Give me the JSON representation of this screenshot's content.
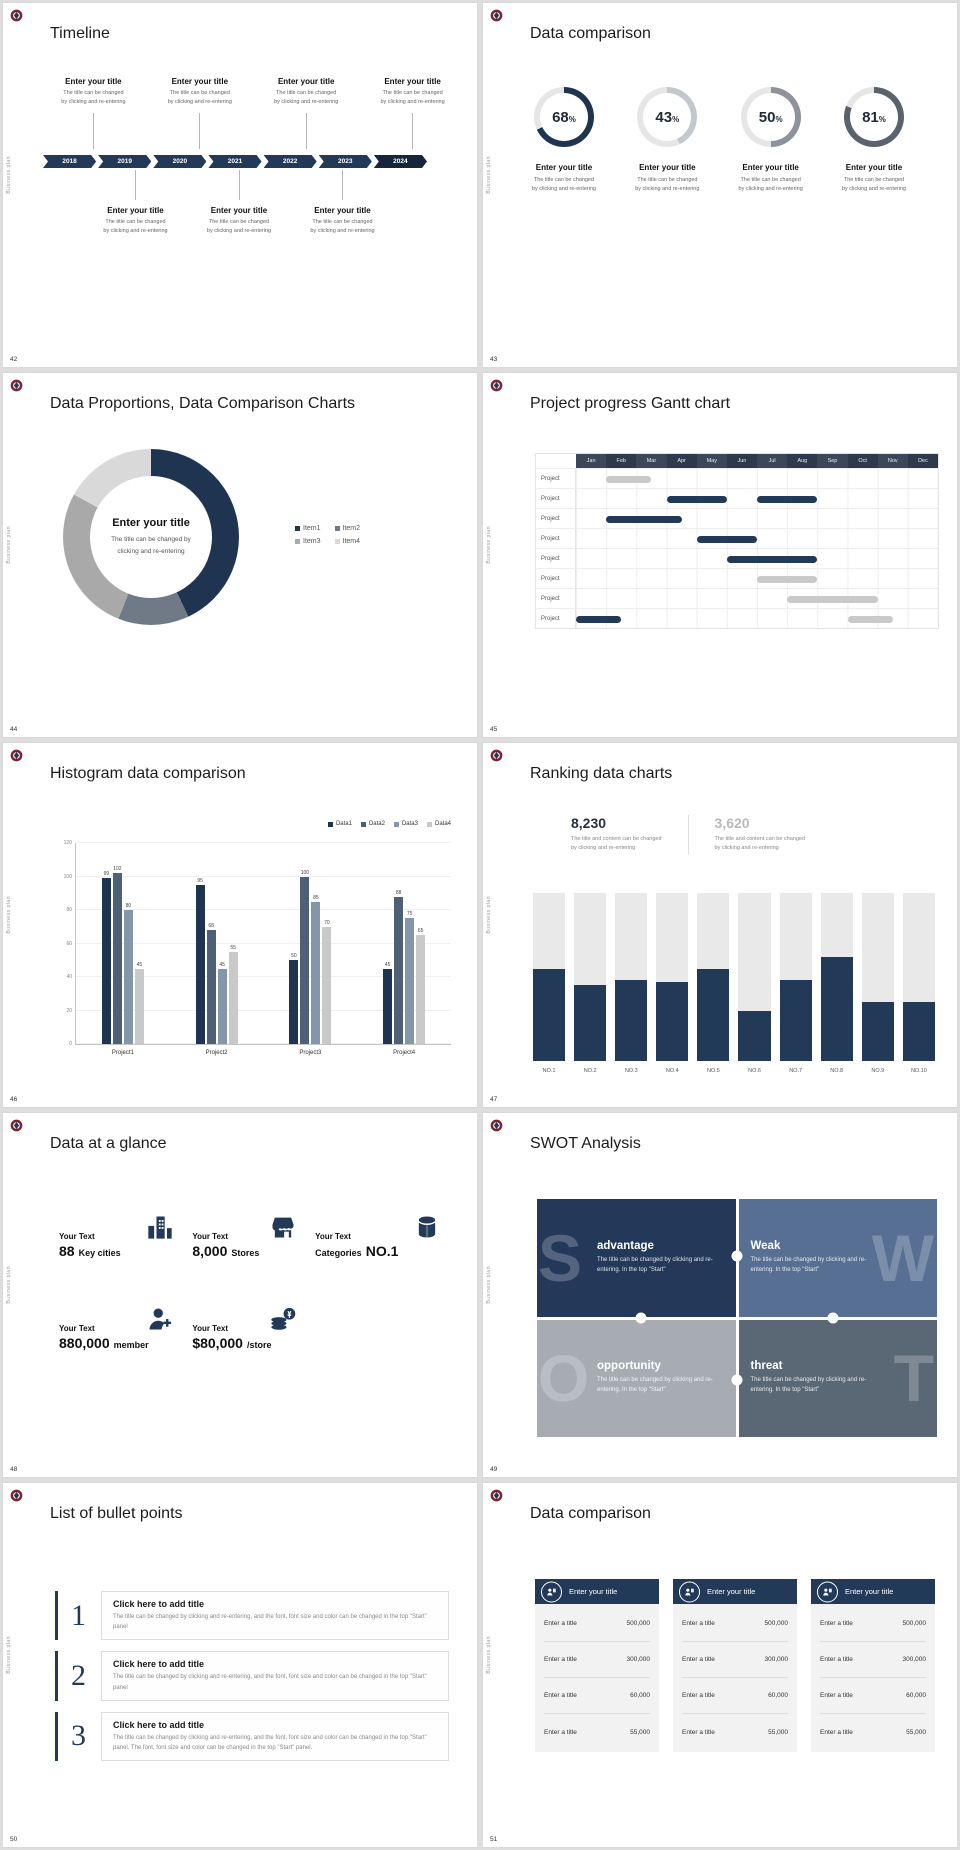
{
  "global": {
    "side_text": "Business plan",
    "colors": {
      "navy": "#223a57",
      "track": "#e6e6e6",
      "light_bar": "#c9c9c9"
    }
  },
  "slides": {
    "timeline": {
      "page": "42",
      "title": "Timeline",
      "years": [
        "2018",
        "2019",
        "2020",
        "2021",
        "2022",
        "2023",
        "2024"
      ],
      "top_count": 4,
      "bottom_count": 3,
      "item_title": "Enter your title",
      "item_line1": "The title can be changed",
      "item_line2": "by clicking and re-entering"
    },
    "comparison": {
      "page": "43",
      "title": "Data comparison",
      "percent_sign": "%",
      "item_title": "Enter your title",
      "item_line1": "The title can be changed",
      "item_line2": "by clicking and re-entering",
      "items": [
        {
          "pct": 68,
          "color": "#1f3450"
        },
        {
          "pct": 43,
          "color": "#c3c8ce"
        },
        {
          "pct": 50,
          "color": "#8d939c"
        },
        {
          "pct": 81,
          "color": "#5a626e"
        }
      ]
    },
    "proportions": {
      "page": "44",
      "title": "Data Proportions, Data Comparison Charts",
      "center_title": "Enter your title",
      "center_line1": "The title can be changed by",
      "center_line2": "clicking and re-entering",
      "segments": [
        {
          "name": "Item1",
          "value": 43,
          "color": "#1f3450"
        },
        {
          "name": "Item2",
          "value": 13,
          "color": "#707a86"
        },
        {
          "name": "Item3",
          "value": 27,
          "color": "#a9a9a9"
        },
        {
          "name": "Item4",
          "value": 17,
          "color": "#d9d9d9"
        }
      ]
    },
    "gantt": {
      "page": "45",
      "title": "Project progress Gantt chart",
      "row_label": "Project",
      "months": [
        "Jan",
        "Feb",
        "Mar",
        "Apr",
        "May",
        "Jun",
        "Jul",
        "Aug",
        "Sep",
        "Oct",
        "Nov",
        "Dec"
      ],
      "rows": [
        {
          "bars": [
            {
              "start": 1,
              "span": 1.5,
              "color": "light"
            }
          ]
        },
        {
          "bars": [
            {
              "start": 3,
              "span": 2,
              "color": "navy"
            },
            {
              "start": 6,
              "span": 2,
              "color": "navy"
            }
          ]
        },
        {
          "bars": [
            {
              "start": 1,
              "span": 2.5,
              "color": "navy"
            }
          ]
        },
        {
          "bars": [
            {
              "start": 4,
              "span": 2,
              "color": "navy"
            }
          ]
        },
        {
          "bars": [
            {
              "start": 5,
              "span": 3,
              "color": "navy"
            }
          ]
        },
        {
          "bars": [
            {
              "start": 6,
              "span": 2,
              "color": "light"
            }
          ]
        },
        {
          "bars": [
            {
              "start": 7,
              "span": 3,
              "color": "light"
            }
          ]
        },
        {
          "bars": [
            {
              "start": 0,
              "span": 1.5,
              "color": "navy"
            },
            {
              "start": 9,
              "span": 1.5,
              "color": "light"
            }
          ]
        }
      ]
    },
    "histogram": {
      "page": "46",
      "title": "Histogram data comparison",
      "ymax": 120,
      "yticks": [
        0,
        20,
        40,
        60,
        80,
        100,
        120
      ],
      "series": [
        {
          "name": "Data1",
          "color": "#1f3450"
        },
        {
          "name": "Data2",
          "color": "#4e6076"
        },
        {
          "name": "Data3",
          "color": "#8496a9"
        },
        {
          "name": "Data4",
          "color": "#c9c9c9"
        }
      ],
      "groups": [
        {
          "label": "Project1",
          "values": [
            99,
            102,
            80,
            45
          ]
        },
        {
          "label": "Project2",
          "values": [
            95,
            68,
            45,
            55
          ]
        },
        {
          "label": "Project3",
          "values": [
            50,
            100,
            85,
            70
          ]
        },
        {
          "label": "Project4",
          "values": [
            45,
            88,
            75,
            65
          ]
        }
      ]
    },
    "ranking": {
      "page": "47",
      "title": "Ranking data charts",
      "max": 100,
      "stat1": {
        "value": "8,230",
        "line1": "The title and content can be changed",
        "line2": "by clicking and re-entering"
      },
      "stat2": {
        "value": "3,620",
        "line1": "The title and content can be changed",
        "line2": "by clicking and re-entering"
      },
      "categories": [
        "NO.1",
        "NO.2",
        "NO.3",
        "NO.4",
        "NO.5",
        "NO.6",
        "NO.7",
        "NO.8",
        "NO.9",
        "NO.10"
      ],
      "values": [
        55,
        45,
        48,
        47,
        55,
        30,
        48,
        62,
        35,
        35
      ]
    },
    "glance": {
      "page": "48",
      "title": "Data at a glance",
      "items": [
        {
          "icon": "city-buildings-icon",
          "label": "Your Text",
          "value": "88",
          "unit": "Key cities"
        },
        {
          "icon": "store-icon",
          "label": "Your Text",
          "value": "8,000",
          "unit": "Stores"
        },
        {
          "icon": "category-boxes-icon",
          "label": "Your Text",
          "value": "Categories",
          "unit": "NO.1"
        },
        {
          "icon": "member-add-icon",
          "label": "Your Text",
          "value": "880,000",
          "unit": "member"
        },
        {
          "icon": "money-coins-icon",
          "label": "Your Text",
          "value": "$80,000",
          "unit": "/store"
        }
      ]
    },
    "swot": {
      "page": "49",
      "title": "SWOT Analysis",
      "quadrants": [
        {
          "letter": "S",
          "heading": "advantage",
          "body": "The title can be changed by clicking and re-entering. In the top \"Start\"",
          "color": "#24395a"
        },
        {
          "letter": "W",
          "heading": "Weak",
          "body": "The title can be changed by clicking and re-entering. In the top \"Start\"",
          "color": "#566f92"
        },
        {
          "letter": "O",
          "heading": "opportunity",
          "body": "The title can be changed by clicking and re-entering. In the top \"Start\"",
          "color": "#a7acb2"
        },
        {
          "letter": "T",
          "heading": "threat",
          "body": "The title can be changed by clicking and re-entering. In the top \"Start\"",
          "color": "#5a6876"
        }
      ]
    },
    "bullets": {
      "page": "50",
      "title": "List of bullet points",
      "items": [
        {
          "num": "1",
          "heading": "Click here to add title",
          "body": "The title can be changed by clicking and re-entering, and the font, font size and color can be changed in the top \"Start\" panel"
        },
        {
          "num": "2",
          "heading": "Click here to add title",
          "body": "The title can be changed by clicking and re-entering, and the font, font size and color can be changed in the top \"Start\" panel"
        },
        {
          "num": "3",
          "heading": "Click here to add title",
          "body": "The title can be changed by clicking and re-entering, and the font, font size and color can be changed in the top \"Start\" panel. The font, font size and color can be changed in the top \"Start\" panel."
        }
      ]
    },
    "datacomp": {
      "page": "51",
      "title": "Data comparison",
      "cards": [
        {
          "icon": "presenter-icon",
          "header": "Enter your title",
          "rows": [
            {
              "label": "Enter a title",
              "value": "500,000"
            },
            {
              "label": "Enter a title",
              "value": "300,000"
            },
            {
              "label": "Enter a title",
              "value": "60,000"
            },
            {
              "label": "Enter a title",
              "value": "55,000"
            }
          ]
        },
        {
          "icon": "presenter-icon",
          "header": "Enter your title",
          "rows": [
            {
              "label": "Enter a title",
              "value": "500,000"
            },
            {
              "label": "Enter a title",
              "value": "300,000"
            },
            {
              "label": "Enter a title",
              "value": "60,000"
            },
            {
              "label": "Enter a title",
              "value": "55,000"
            }
          ]
        },
        {
          "icon": "presenter-icon",
          "header": "Enter your title",
          "rows": [
            {
              "label": "Enter a title",
              "value": "500,000"
            },
            {
              "label": "Enter a title",
              "value": "300,000"
            },
            {
              "label": "Enter a title",
              "value": "60,000"
            },
            {
              "label": "Enter a title",
              "value": "55,000"
            }
          ]
        }
      ]
    }
  }
}
